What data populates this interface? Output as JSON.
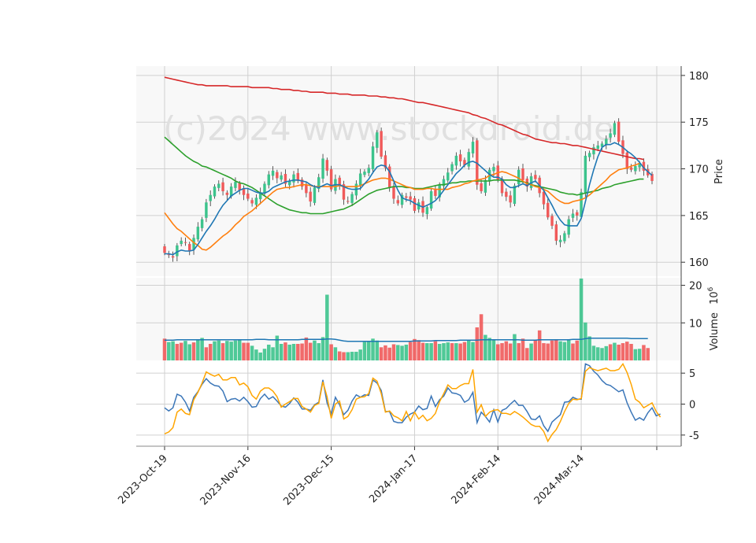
{
  "chart_data": [
    {
      "type": "candlestick",
      "panel": "price",
      "watermark": "(c)2024 www.stockdroid.de",
      "ylabel": "Price",
      "yticks": [
        160,
        165,
        170,
        175,
        180
      ],
      "ylim": [
        158.5,
        181
      ],
      "x_tick_labels": [
        "2023-Oct-19",
        "2023-Nov-16",
        "2023-Dec-15",
        "2024-Jan-17",
        "2024-Feb-14",
        "2024-Mar-14"
      ],
      "x_tick_index": [
        0,
        20,
        40,
        60,
        80,
        100
      ],
      "colors": {
        "up": "#3cc38c",
        "down": "#f05a5a",
        "ma_short": "#1f77b4",
        "ma_mid": "#ff7f0e",
        "ma_long": "#2ca02c",
        "ma_200": "#d62728"
      },
      "close": [
        161,
        160.8,
        160.5,
        161.8,
        162.3,
        162.1,
        161.2,
        162.6,
        163.8,
        164.6,
        166.4,
        167.2,
        168.1,
        168.4,
        167.6,
        167.2,
        168.1,
        168.6,
        167.7,
        167.2,
        166.8,
        166.3,
        166.9,
        167.5,
        168.4,
        169.4,
        169.8,
        169,
        169.3,
        168.4,
        168.7,
        169.4,
        168.7,
        168.1,
        167.4,
        166.5,
        168,
        169.1,
        171.1,
        169.8,
        167.8,
        168.9,
        168.2,
        166.7,
        166.5,
        167.3,
        168.4,
        169.5,
        169.7,
        170.1,
        172.4,
        173.9,
        171.3,
        170.1,
        168,
        166.8,
        166.3,
        167.2,
        166.9,
        166.7,
        165.5,
        166.4,
        165.3,
        165.9,
        167.6,
        167.1,
        168.3,
        168.9,
        169.6,
        170.5,
        171.4,
        170.8,
        170.4,
        171.8,
        172.9,
        168.3,
        167.6,
        168.8,
        169.9,
        170.2,
        168.8,
        167.4,
        167,
        166.4,
        168.2,
        169.9,
        168.8,
        168.1,
        169.2,
        168.9,
        167.4,
        166.2,
        164.8,
        163.9,
        162.3,
        162.4,
        163.1,
        164.6,
        165.2,
        165,
        167.5,
        171.4,
        171.7,
        172.3,
        172.5,
        172.7,
        173.2,
        173.8,
        174.9,
        172.9,
        171.6,
        170,
        169.9,
        170.3,
        170.6,
        169.8,
        169.3,
        168.7
      ],
      "ma_short": [
        160.9,
        160.9,
        160.8,
        161.1,
        161.3,
        161.2,
        161.2,
        161.3,
        161.9,
        162.6,
        163.3,
        163.9,
        164.6,
        165.4,
        166.1,
        166.6,
        167.1,
        167.4,
        167.7,
        167.9,
        167.9,
        167.7,
        167.5,
        167.4,
        167.4,
        167.6,
        168,
        168.2,
        168.4,
        168.6,
        168.7,
        168.8,
        168.8,
        168.7,
        168.6,
        168.3,
        168.1,
        168,
        168.2,
        168.4,
        168.2,
        168.3,
        168.3,
        168.1,
        167.9,
        167.8,
        167.8,
        167.9,
        168.4,
        168.9,
        169.6,
        170.2,
        170.4,
        170.3,
        169.7,
        168.7,
        167.7,
        166.9,
        166.7,
        166.6,
        166.3,
        166.1,
        165.9,
        166.1,
        166.3,
        166.6,
        167.1,
        167.7,
        168.3,
        168.9,
        169.5,
        169.9,
        170.4,
        170.7,
        170.8,
        170.6,
        170.2,
        169.8,
        169.4,
        169.1,
        169.1,
        168.9,
        168.3,
        168,
        168,
        168.2,
        168.4,
        168.2,
        168.5,
        168.7,
        168.2,
        167.7,
        166.9,
        166.1,
        165.2,
        164.5,
        164,
        163.9,
        163.9,
        163.9,
        164.7,
        166.5,
        168.3,
        169.9,
        171.3,
        172.3,
        172.6,
        172.6,
        172.8,
        172.6,
        172.3,
        171.9,
        171.6,
        171.2,
        170.7,
        170.1,
        169.7,
        169.3
      ],
      "ma_mid": [
        165.3,
        164.7,
        164.1,
        163.6,
        163.3,
        162.9,
        162.5,
        162.1,
        161.8,
        161.4,
        161.3,
        161.6,
        162,
        162.4,
        162.8,
        163.1,
        163.5,
        164,
        164.4,
        164.9,
        165.2,
        165.5,
        165.9,
        166.3,
        166.7,
        167.1,
        167.5,
        167.8,
        167.9,
        168,
        168,
        168.1,
        168.2,
        168.3,
        168.3,
        168.2,
        168.1,
        168.1,
        168.1,
        168.1,
        168.1,
        168.1,
        168.2,
        168.1,
        168.1,
        168.1,
        168.1,
        168.2,
        168.4,
        168.6,
        168.8,
        168.9,
        169,
        169,
        168.9,
        168.7,
        168.5,
        168.3,
        168.1,
        168,
        167.8,
        167.8,
        167.8,
        167.9,
        167.9,
        167.8,
        167.8,
        167.8,
        167.8,
        168,
        168.1,
        168.2,
        168.4,
        168.5,
        168.7,
        168.8,
        168.9,
        169,
        169.3,
        169.4,
        169.6,
        169.7,
        169.6,
        169.4,
        169.2,
        169,
        168.7,
        168.4,
        168.3,
        168.1,
        168,
        167.8,
        167.6,
        167.2,
        166.8,
        166.5,
        166.3,
        166.3,
        166.5,
        166.6,
        166.7,
        166.9,
        167.2,
        167.6,
        168,
        168.4,
        168.8,
        169.3,
        169.6,
        169.9,
        170,
        170.1,
        170.3,
        170.4,
        170.6
      ],
      "ma_long": [
        173.4,
        173,
        172.6,
        172.2,
        171.8,
        171.4,
        171.1,
        170.8,
        170.6,
        170.3,
        170.2,
        170,
        169.8,
        169.6,
        169.4,
        169.2,
        169,
        168.7,
        168.5,
        168.4,
        168.2,
        168,
        167.7,
        167.4,
        167.1,
        166.8,
        166.5,
        166.2,
        166,
        165.8,
        165.6,
        165.5,
        165.4,
        165.3,
        165.3,
        165.2,
        165.2,
        165.2,
        165.2,
        165.3,
        165.4,
        165.5,
        165.6,
        165.7,
        165.9,
        166.1,
        166.4,
        166.7,
        167,
        167.3,
        167.5,
        167.7,
        167.8,
        167.9,
        168,
        168.1,
        168.1,
        168.1,
        168,
        168,
        167.9,
        167.9,
        167.9,
        168,
        168.1,
        168.2,
        168.3,
        168.3,
        168.4,
        168.5,
        168.5,
        168.6,
        168.6,
        168.7,
        168.7,
        168.7,
        168.7,
        168.7,
        168.7,
        168.8,
        168.8,
        168.8,
        168.8,
        168.8,
        168.8,
        168.7,
        168.6,
        168.5,
        168.3,
        168.2,
        168.1,
        168,
        167.9,
        167.8,
        167.7,
        167.5,
        167.4,
        167.3,
        167.3,
        167.2,
        167.3,
        167.4,
        167.5,
        167.6,
        167.7,
        167.9,
        168,
        168.1,
        168.3,
        168.4,
        168.5,
        168.6,
        168.7,
        168.8,
        168.9,
        168.9
      ],
      "ma_200": [
        179.8,
        179.7,
        179.6,
        179.5,
        179.4,
        179.3,
        179.2,
        179.1,
        179,
        179,
        178.9,
        178.9,
        178.9,
        178.9,
        178.9,
        178.9,
        178.8,
        178.8,
        178.8,
        178.8,
        178.8,
        178.7,
        178.7,
        178.7,
        178.7,
        178.7,
        178.6,
        178.6,
        178.5,
        178.5,
        178.5,
        178.4,
        178.4,
        178.3,
        178.3,
        178.2,
        178.2,
        178.2,
        178.2,
        178.1,
        178.1,
        178.1,
        178,
        178,
        178,
        177.9,
        177.9,
        177.9,
        177.9,
        177.8,
        177.8,
        177.8,
        177.7,
        177.7,
        177.6,
        177.6,
        177.5,
        177.5,
        177.4,
        177.3,
        177.2,
        177.1,
        177.1,
        177,
        176.9,
        176.8,
        176.7,
        176.6,
        176.5,
        176.4,
        176.3,
        176.2,
        176.1,
        176,
        175.8,
        175.7,
        175.5,
        175.4,
        175.2,
        175,
        174.8,
        174.7,
        174.5,
        174.3,
        174.1,
        173.9,
        173.7,
        173.6,
        173.4,
        173.2,
        173.1,
        173,
        172.9,
        172.8,
        172.8,
        172.7,
        172.7,
        172.6,
        172.5,
        172.5,
        172.4,
        172.3,
        172.2,
        172.1,
        172,
        171.9,
        171.8,
        171.7,
        171.6,
        171.5,
        171.4,
        171.3,
        171.2,
        171.1,
        171.1,
        171
      ],
      "ma_label_note": ""
    },
    {
      "type": "bar",
      "panel": "volume",
      "ylabel": "Volume",
      "ylabel_exponent": "10^6",
      "yticks": [
        10,
        20
      ],
      "ylim": [
        0,
        22
      ],
      "volume": [
        5.8,
        4.9,
        5.1,
        4.4,
        4.7,
        5.2,
        4.3,
        4.8,
        5.5,
        6,
        3.5,
        4.4,
        5.1,
        5.3,
        4.6,
        5.2,
        5,
        5.3,
        5.6,
        4.7,
        4.7,
        3.9,
        2.9,
        2.1,
        3.1,
        4.2,
        3.5,
        6.6,
        4.4,
        4.8,
        4.2,
        4.4,
        4.4,
        4.5,
        6.1,
        4.7,
        5.3,
        4.6,
        6.2,
        17.5,
        4.3,
        3.5,
        2.4,
        2.2,
        2.2,
        2.3,
        2.3,
        2.9,
        4.9,
        5.1,
        5.8,
        5.3,
        3.5,
        4,
        3.4,
        4.3,
        4.1,
        3.9,
        4.2,
        4.9,
        5.7,
        5.4,
        4.7,
        4.6,
        4.6,
        5.1,
        4.4,
        4.6,
        4.8,
        4.6,
        4.6,
        4.5,
        4.9,
        5.4,
        4.9,
        8.8,
        12.3,
        6.8,
        6,
        5.6,
        4.3,
        4.6,
        5.1,
        4.5,
        7,
        4.6,
        5.8,
        3.3,
        4.5,
        5.4,
        8,
        4.6,
        4.5,
        5.3,
        5.6,
        5.1,
        4.9,
        5.5,
        4.5,
        5.3,
        21.8,
        10.1,
        6.4,
        3.9,
        3.5,
        3.3,
        3.8,
        4.3,
        4.7,
        4.2,
        4.6,
        5,
        4.4,
        3,
        3.1,
        4.1,
        3.3
      ],
      "up_flags": [
        false,
        true,
        true,
        false,
        false,
        true,
        true,
        false,
        true,
        true,
        false,
        false,
        true,
        true,
        false,
        true,
        true,
        true,
        true,
        false,
        false,
        true,
        true,
        true,
        true,
        true,
        true,
        true,
        true,
        false,
        true,
        true,
        false,
        false,
        false,
        false,
        true,
        true,
        true,
        true,
        false,
        true,
        false,
        false,
        true,
        true,
        true,
        true,
        true,
        true,
        true,
        true,
        false,
        false,
        false,
        false,
        true,
        true,
        true,
        false,
        false,
        false,
        false,
        true,
        true,
        false,
        true,
        true,
        true,
        false,
        true,
        false,
        false,
        true,
        true,
        false,
        false,
        true,
        true,
        true,
        false,
        false,
        false,
        false,
        true,
        false,
        false,
        false,
        true,
        false,
        false,
        false,
        false,
        false,
        false,
        true,
        true,
        true,
        false,
        false,
        true,
        true,
        true,
        true,
        true,
        true,
        true,
        false,
        true,
        false,
        false,
        false,
        false,
        true,
        true,
        false,
        false
      ],
      "ma": [
        5.4,
        5.4,
        5.4,
        5.5,
        5.5,
        5.5,
        5.5,
        5.5,
        5.5,
        5.5,
        5.5,
        5.5,
        5.5,
        5.5,
        5.5,
        5.5,
        5.5,
        5.5,
        5.5,
        5.5,
        5.5,
        5.5,
        5.6,
        5.6,
        5.6,
        5.5,
        5.5,
        5.5,
        5.5,
        5.5,
        5.5,
        5.5,
        5.5,
        5.6,
        5.6,
        5.6,
        5.6,
        5.6,
        5.6,
        5.7,
        5.7,
        5.6,
        5.4,
        5.2,
        5.1,
        5.1,
        5.1,
        5.1,
        5.1,
        5.1,
        5.1,
        5.1,
        5.1,
        5.1,
        5.1,
        5.1,
        5.1,
        5.1,
        5.1,
        5.1,
        5.2,
        5.2,
        5.2,
        5.2,
        5.2,
        5.3,
        5.3,
        5.3,
        5.3,
        5.3,
        5.3,
        5.4,
        5.4,
        5.4,
        5.4,
        5.4,
        5.5,
        5.5,
        5.5,
        5.5,
        5.5,
        5.5,
        5.5,
        5.5,
        5.5,
        5.5,
        5.4,
        5.4,
        5.4,
        5.4,
        5.5,
        5.5,
        5.5,
        5.5,
        5.5,
        5.5,
        5.5,
        5.5,
        5.6,
        5.6,
        5.6,
        5.8,
        5.9,
        5.9,
        5.9,
        5.9,
        5.9,
        5.9,
        5.9,
        5.9,
        5.9,
        5.9,
        5.8,
        5.8,
        5.8,
        5.8,
        5.8
      ]
    },
    {
      "type": "line",
      "panel": "oscillator",
      "yticks": [
        -5,
        0,
        5
      ],
      "ylim": [
        -6.8,
        6.8
      ],
      "series": [
        {
          "name": "macd",
          "color": "#3b76b8",
          "values": [
            -0.6,
            -1.1,
            -0.6,
            1.6,
            1.3,
            0.3,
            -1.1,
            1.1,
            2,
            3.2,
            4.1,
            3.4,
            3,
            2.9,
            2.1,
            0.4,
            0.8,
            0.9,
            0.5,
            1.1,
            0.4,
            -0.5,
            -0.4,
            0.9,
            1.6,
            0.8,
            1.2,
            0.5,
            -0.3,
            -0.5,
            0.1,
            1,
            0.3,
            -0.8,
            -0.8,
            -1,
            -0.1,
            0.3,
            3.9,
            0.2,
            -1.6,
            1.1,
            -0.1,
            -1.7,
            -1,
            0.5,
            1.5,
            1.1,
            1.5,
            1.4,
            3.9,
            3.4,
            2.2,
            -1.2,
            -1.2,
            -2.8,
            -3,
            -3,
            -2.1,
            -1.6,
            -1.3,
            -0.3,
            -0.9,
            -0.7,
            1.3,
            -0.4,
            0.7,
            1.3,
            2.6,
            1.8,
            1.7,
            1.4,
            0.3,
            0.7,
            1.9,
            -3,
            -1.3,
            -2,
            -2.9,
            -0.9,
            -2.9,
            -1,
            -0.7,
            0,
            0.6,
            -0.2,
            -0.2,
            -1.2,
            -2.4,
            -2.5,
            -1.9,
            -3.5,
            -4.4,
            -2.9,
            -2.3,
            -1.7,
            0.3,
            0.4,
            1.1,
            0.8,
            0.8,
            6.5,
            6.2,
            5.3,
            4.7,
            3.8,
            3.2,
            3,
            2.5,
            2,
            2.3,
            0.2,
            -1.3,
            -2.6,
            -2.2,
            -2.6,
            -1.4,
            -0.6,
            -1.9,
            -1.6
          ]
        },
        {
          "name": "signal",
          "color": "#ffa500",
          "values": [
            -4.8,
            -4.5,
            -3.8,
            -1.3,
            -0.8,
            -1.5,
            -1.7,
            0.7,
            1.9,
            3.4,
            5.2,
            4.8,
            4.5,
            4.8,
            3.9,
            3.9,
            4.3,
            4.3,
            3.1,
            3.4,
            2.8,
            1.4,
            0.8,
            2.1,
            2.6,
            2.6,
            2.1,
            1.2,
            -0.5,
            0,
            0.4,
            0.9,
            0.9,
            -0.4,
            -0.8,
            -1.3,
            -0.2,
            0.1,
            3.6,
            1.2,
            -2.3,
            0,
            0.5,
            -2.4,
            -2,
            -0.9,
            0.8,
            1.1,
            1.2,
            1.7,
            4.2,
            3.7,
            1.7,
            -1.3,
            -1.1,
            -1.9,
            -2.2,
            -2.7,
            -1.2,
            -2.7,
            -1.3,
            -2.4,
            -1.8,
            -2.7,
            -2.3,
            -1.5,
            0.4,
            1.7,
            3.1,
            2.5,
            2.5,
            3,
            3.3,
            3.3,
            5.6,
            -1.3,
            -0.1,
            -2,
            -1.3,
            -1,
            -0.9,
            -1.5,
            -1.5,
            -1.7,
            -1.2,
            -1.6,
            -2.1,
            -2.7,
            -3.3,
            -3.6,
            -3.6,
            -4.4,
            -6,
            -4.9,
            -4.1,
            -2.8,
            -1.2,
            0.1,
            0.8,
            0.7,
            0.9,
            5.3,
            5.9,
            5.6,
            5.4,
            5.6,
            5.8,
            5.4,
            5.4,
            5.6,
            6.5,
            5.1,
            3.2,
            0.8,
            0.3,
            -0.6,
            -0.2,
            0.2,
            -1.2,
            -2.1
          ]
        }
      ]
    }
  ]
}
